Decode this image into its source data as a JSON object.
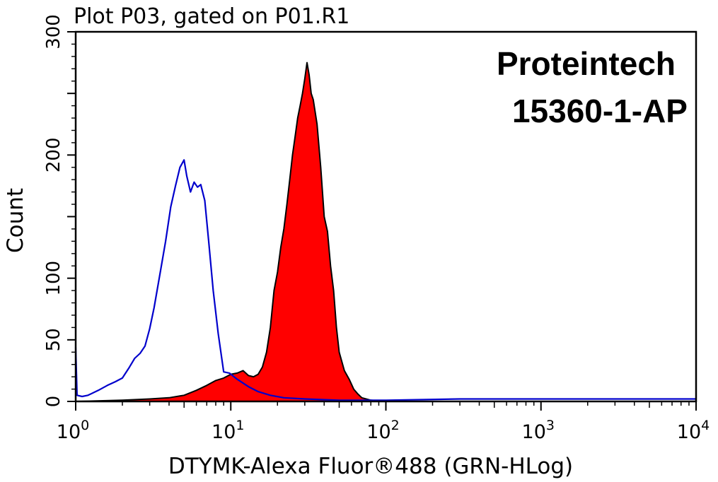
{
  "chart_data": {
    "type": "area",
    "title": "Plot P03, gated on P01.R1",
    "xlabel": "DTYMK-Alexa Fluor®488 (GRN-HLog)",
    "ylabel": "Count",
    "xscale": "log",
    "xlim": [
      1,
      10000
    ],
    "ylim": [
      0,
      300
    ],
    "x_ticks": [
      {
        "base": "10",
        "exp": "0"
      },
      {
        "base": "10",
        "exp": "1"
      },
      {
        "base": "10",
        "exp": "2"
      },
      {
        "base": "10",
        "exp": "3"
      },
      {
        "base": "10",
        "exp": "4"
      }
    ],
    "y_ticks": [
      "0",
      "50",
      "100",
      "200",
      "300"
    ],
    "y_tick_values": [
      0,
      50,
      100,
      200,
      300
    ],
    "grid": false,
    "annotations": [
      "Proteintech",
      "15360-1-AP"
    ],
    "series": [
      {
        "color": "#0000cc",
        "style": "outline",
        "points": [
          [
            1.0,
            44
          ],
          [
            1.02,
            5
          ],
          [
            1.1,
            4
          ],
          [
            1.2,
            5
          ],
          [
            1.4,
            9
          ],
          [
            1.6,
            13
          ],
          [
            1.8,
            16
          ],
          [
            2.0,
            19
          ],
          [
            2.2,
            27
          ],
          [
            2.4,
            35
          ],
          [
            2.6,
            39
          ],
          [
            2.8,
            45
          ],
          [
            3.0,
            59
          ],
          [
            3.2,
            76
          ],
          [
            3.5,
            104
          ],
          [
            3.8,
            130
          ],
          [
            4.1,
            158
          ],
          [
            4.4,
            175
          ],
          [
            4.7,
            190
          ],
          [
            5.0,
            196
          ],
          [
            5.2,
            183
          ],
          [
            5.5,
            170
          ],
          [
            5.8,
            178
          ],
          [
            6.1,
            174
          ],
          [
            6.4,
            176
          ],
          [
            6.8,
            163
          ],
          [
            7.2,
            130
          ],
          [
            7.7,
            90
          ],
          [
            8.3,
            55
          ],
          [
            9.0,
            24
          ],
          [
            9.8,
            23
          ],
          [
            11,
            18
          ],
          [
            13,
            12
          ],
          [
            15,
            8
          ],
          [
            18,
            5
          ],
          [
            22,
            3
          ],
          [
            30,
            2
          ],
          [
            50,
            1
          ],
          [
            100,
            1
          ],
          [
            300,
            2
          ],
          [
            1000,
            2
          ],
          [
            3000,
            2
          ],
          [
            10000,
            2
          ]
        ]
      },
      {
        "color": "#ff0000",
        "style": "filled",
        "points": [
          [
            1.0,
            0
          ],
          [
            2,
            1
          ],
          [
            3,
            2
          ],
          [
            4,
            3
          ],
          [
            5,
            5
          ],
          [
            6,
            9
          ],
          [
            7,
            13
          ],
          [
            8,
            17
          ],
          [
            9,
            19
          ],
          [
            10,
            22
          ],
          [
            11,
            23
          ],
          [
            12,
            25
          ],
          [
            13,
            21
          ],
          [
            14,
            20
          ],
          [
            15,
            22
          ],
          [
            16,
            28
          ],
          [
            17,
            40
          ],
          [
            18,
            60
          ],
          [
            19,
            90
          ],
          [
            20,
            105
          ],
          [
            21,
            125
          ],
          [
            22,
            140
          ],
          [
            23,
            160
          ],
          [
            24,
            180
          ],
          [
            25,
            200
          ],
          [
            26,
            215
          ],
          [
            27,
            230
          ],
          [
            28,
            240
          ],
          [
            29,
            250
          ],
          [
            30,
            262
          ],
          [
            31,
            275
          ],
          [
            32,
            265
          ],
          [
            33,
            250
          ],
          [
            34,
            245
          ],
          [
            36,
            225
          ],
          [
            38,
            190
          ],
          [
            40,
            150
          ],
          [
            42,
            138
          ],
          [
            44,
            110
          ],
          [
            46,
            90
          ],
          [
            48,
            60
          ],
          [
            50,
            40
          ],
          [
            54,
            25
          ],
          [
            58,
            18
          ],
          [
            62,
            10
          ],
          [
            66,
            6
          ],
          [
            70,
            3
          ],
          [
            80,
            1
          ],
          [
            100,
            0
          ],
          [
            10000,
            0
          ]
        ]
      }
    ]
  }
}
